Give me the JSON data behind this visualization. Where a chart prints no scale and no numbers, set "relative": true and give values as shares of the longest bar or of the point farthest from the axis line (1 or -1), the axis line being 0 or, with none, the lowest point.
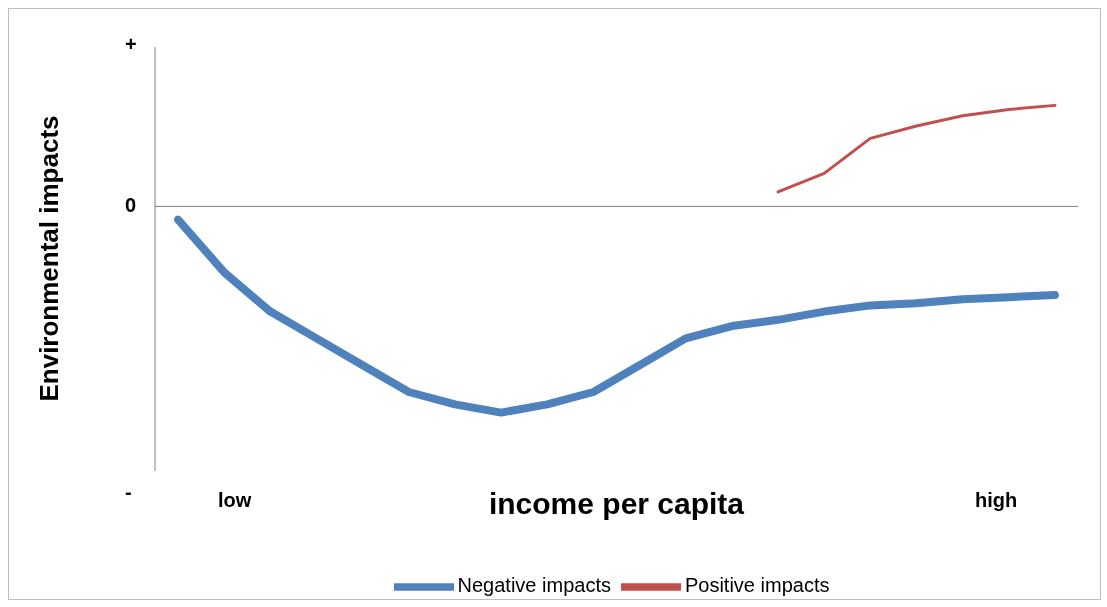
{
  "chart_data": {
    "type": "line",
    "relative": true,
    "xlabel": "income per capita",
    "ylabel": "Environmental impacts",
    "categories": [
      null,
      null,
      null,
      null,
      null,
      null,
      null,
      null,
      null,
      null,
      null,
      null,
      null,
      null,
      null,
      null,
      null,
      null,
      null,
      null
    ],
    "series": [
      {
        "name": "Negative impacts",
        "color": "#4f81bd",
        "values": [
          -0.064,
          -0.32,
          -0.51,
          -0.64,
          -0.77,
          -0.9,
          -0.96,
          -1,
          -0.96,
          -0.9,
          -0.77,
          -0.64,
          -0.58,
          -0.55,
          -0.51,
          -0.48,
          -0.47,
          -0.45,
          -0.44,
          -0.43
        ]
      },
      {
        "name": "Positive impacts",
        "color": "#c0504d",
        "values": [
          null,
          null,
          null,
          null,
          null,
          null,
          null,
          null,
          null,
          null,
          null,
          null,
          null,
          0.07,
          0.16,
          0.33,
          0.39,
          0.44,
          0.47,
          0.49
        ]
      }
    ],
    "annotations": [
      "+",
      "0",
      "-",
      "low",
      "high"
    ],
    "legend": "bottom",
    "grid": false,
    "marker": "none",
    "line_style": "solid"
  }
}
